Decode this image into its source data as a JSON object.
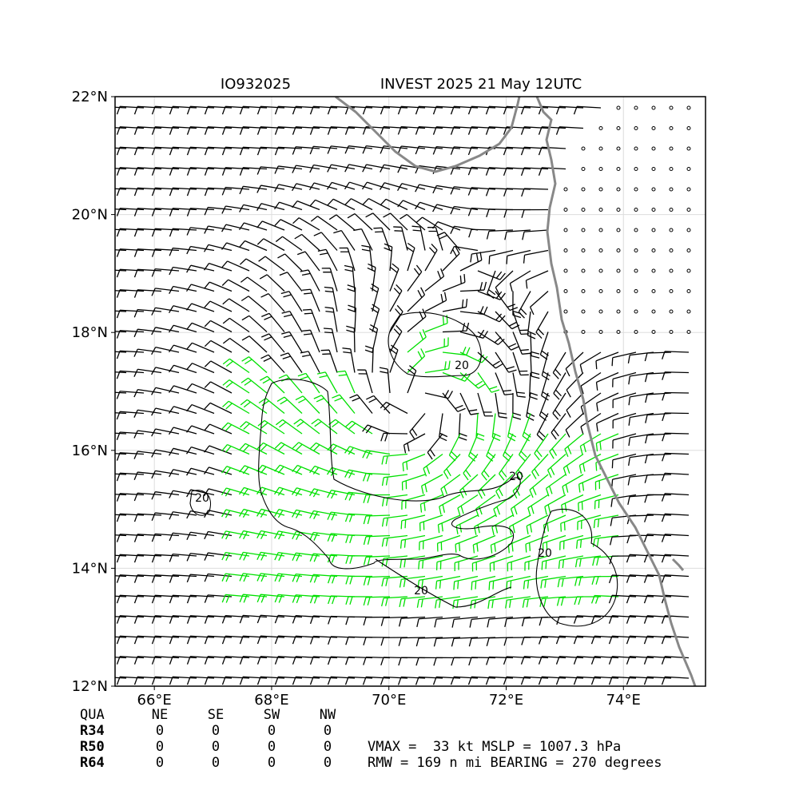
{
  "map": {
    "title_left": "IO932025",
    "title_right": "INVEST 2025 21 May 12UTC",
    "xlim": [
      65.33,
      75.4
    ],
    "ylim": [
      12,
      22
    ],
    "xticks": [
      {
        "value": 66,
        "label": "66°E"
      },
      {
        "value": 68,
        "label": "68°E"
      },
      {
        "value": 70,
        "label": "70°E"
      },
      {
        "value": 72,
        "label": "72°E"
      },
      {
        "value": 74,
        "label": "74°E"
      }
    ],
    "yticks": [
      {
        "value": 12,
        "label": "12°N"
      },
      {
        "value": 14,
        "label": "14°N"
      },
      {
        "value": 16,
        "label": "16°N"
      },
      {
        "value": 18,
        "label": "18°N"
      },
      {
        "value": 20,
        "label": "20°N"
      },
      {
        "value": 22,
        "label": "22°N"
      }
    ],
    "grid": true,
    "contour_labels": [
      "20",
      "20",
      "20",
      "20",
      "20"
    ]
  },
  "table": {
    "header": [
      "QUA",
      "NE",
      "SE",
      "SW",
      "NW"
    ],
    "rows": [
      [
        "R34",
        "0",
        "0",
        "0",
        "0"
      ],
      [
        "R50",
        "0",
        "0",
        "0",
        "0"
      ],
      [
        "R64",
        "0",
        "0",
        "0",
        "0"
      ]
    ]
  },
  "summary": [
    "VMAX =  33 kt MSLP = 1007.3 hPa",
    "RMW = 169 n mi BEARING = 270 degrees"
  ]
}
